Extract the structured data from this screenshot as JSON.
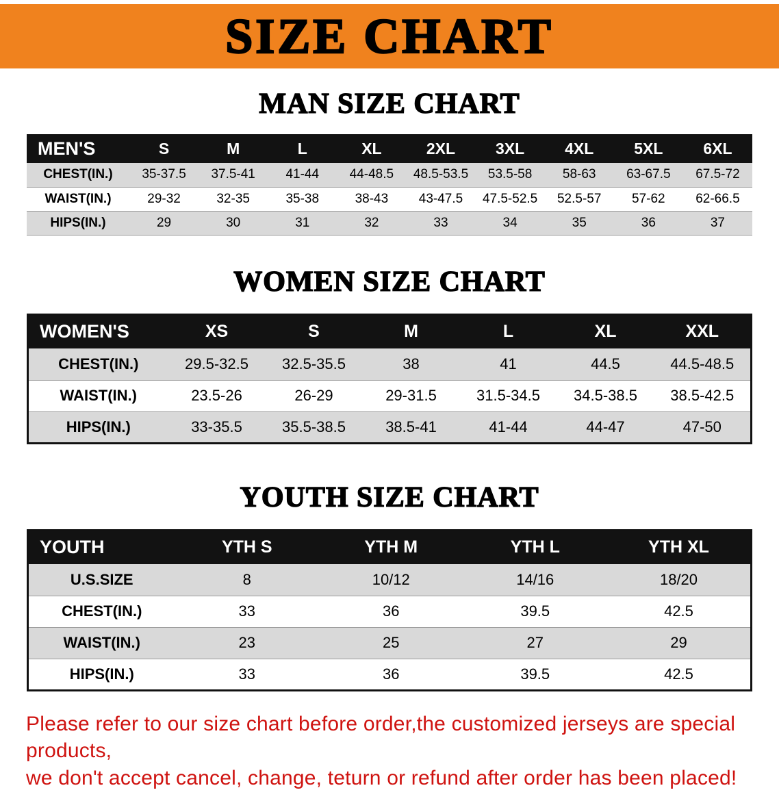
{
  "banner": {
    "title": "SIZE CHART"
  },
  "sections": [
    {
      "heading": "MAN SIZE CHART",
      "table": {
        "header": [
          "MEN'S",
          "S",
          "M",
          "L",
          "XL",
          "2XL",
          "3XL",
          "4XL",
          "5XL",
          "6XL"
        ],
        "rows": [
          [
            "CHEST(IN.)",
            "35-37.5",
            "37.5-41",
            "41-44",
            "44-48.5",
            "48.5-53.5",
            "53.5-58",
            "58-63",
            "63-67.5",
            "67.5-72"
          ],
          [
            "WAIST(IN.)",
            "29-32",
            "32-35",
            "35-38",
            "38-43",
            "43-47.5",
            "47.5-52.5",
            "52.5-57",
            "57-62",
            "62-66.5"
          ],
          [
            "HIPS(IN.)",
            "29",
            "30",
            "31",
            "32",
            "33",
            "34",
            "35",
            "36",
            "37"
          ]
        ]
      }
    },
    {
      "heading": "WOMEN SIZE CHART",
      "table": {
        "header": [
          "WOMEN'S",
          "XS",
          "S",
          "M",
          "L",
          "XL",
          "XXL"
        ],
        "rows": [
          [
            "CHEST(IN.)",
            "29.5-32.5",
            "32.5-35.5",
            "38",
            "41",
            "44.5",
            "44.5-48.5"
          ],
          [
            "WAIST(IN.)",
            "23.5-26",
            "26-29",
            "29-31.5",
            "31.5-34.5",
            "34.5-38.5",
            "38.5-42.5"
          ],
          [
            "HIPS(IN.)",
            "33-35.5",
            "35.5-38.5",
            "38.5-41",
            "41-44",
            "44-47",
            "47-50"
          ]
        ]
      }
    },
    {
      "heading": "YOUTH SIZE CHART",
      "table": {
        "header": [
          "YOUTH",
          "YTH S",
          "YTH M",
          "YTH L",
          "YTH XL"
        ],
        "rows": [
          [
            "U.S.SIZE",
            "8",
            "10/12",
            "14/16",
            "18/20"
          ],
          [
            "CHEST(IN.)",
            "33",
            "36",
            "39.5",
            "42.5"
          ],
          [
            "WAIST(IN.)",
            "23",
            "25",
            "27",
            "29"
          ],
          [
            "HIPS(IN.)",
            "33",
            "36",
            "39.5",
            "42.5"
          ]
        ]
      }
    }
  ],
  "footer": {
    "line1": "Please refer to our size chart before order,the customized jerseys are special products,",
    "line2": "we don't accept cancel, change, teturn or refund after order has been placed!"
  },
  "colors": {
    "banner_bg": "#f0821e",
    "table_header_bg": "#121212",
    "row_shade": "#d9d9d9",
    "note_red": "#cf1310"
  }
}
